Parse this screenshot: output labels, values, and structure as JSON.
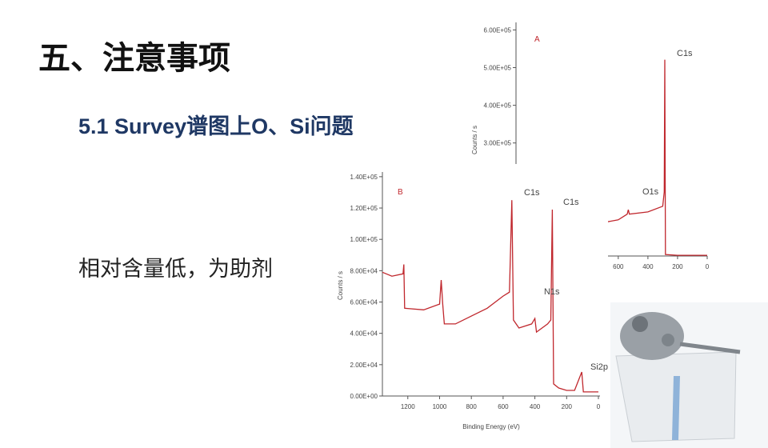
{
  "title": "五、注意事项",
  "subtitle": "5.1 Survey谱图上O、Si问题",
  "note": "相对含量低，为助剂",
  "chart_data": [
    {
      "type": "line",
      "panel": "A",
      "ylabel": "Counts / s",
      "color": "#c0272d",
      "annotations": [
        "C1s",
        "O1s"
      ],
      "x": [
        700,
        600,
        540,
        532,
        525,
        400,
        300,
        290,
        286,
        282,
        200,
        0
      ],
      "values": [
        89000,
        96000,
        111000,
        123000,
        111000,
        117000,
        132000,
        170000,
        521000,
        4000,
        2000,
        2000
      ],
      "xlim": [
        1290,
        0
      ],
      "xticks": [
        600,
        400,
        200,
        0
      ],
      "ylim": [
        0,
        620000
      ],
      "yticks": [
        {
          "value": 300000,
          "label": "3.00E+05"
        },
        {
          "value": 400000,
          "label": "4.00E+05"
        },
        {
          "value": 500000,
          "label": "5.00E+05"
        },
        {
          "value": 600000,
          "label": "6.00E+05"
        }
      ]
    },
    {
      "type": "line",
      "panel": "B",
      "xlabel": "Binding Energy (eV)",
      "ylabel": "Counts / s",
      "color": "#c0272d",
      "annotations": [
        "C1s",
        "C1s",
        "N1s",
        "Si2p"
      ],
      "x": [
        1360,
        1300,
        1230,
        1225,
        1220,
        1100,
        1000,
        990,
        980,
        970,
        900,
        800,
        700,
        600,
        560,
        545,
        535,
        500,
        420,
        400,
        390,
        320,
        300,
        290,
        282,
        250,
        200,
        150,
        105,
        95,
        50,
        0
      ],
      "values": [
        79000,
        76500,
        78000,
        84000,
        56000,
        55000,
        58700,
        74000,
        58700,
        46000,
        46000,
        51000,
        56000,
        63800,
        66300,
        125000,
        48500,
        43400,
        46000,
        49500,
        40800,
        46000,
        48500,
        119000,
        7700,
        5100,
        3600,
        3600,
        15300,
        2600,
        2600,
        2600
      ],
      "xlim": [
        1360,
        -10
      ],
      "xticks": [
        1200,
        1000,
        800,
        600,
        400,
        200,
        0
      ],
      "ylim": [
        0,
        143000
      ],
      "yticks": [
        {
          "value": 0,
          "label": "0.00E+00"
        },
        {
          "value": 20000,
          "label": "2.00E+04"
        },
        {
          "value": 40000,
          "label": "4.00E+04"
        },
        {
          "value": 60000,
          "label": "6.00E+04"
        },
        {
          "value": 80000,
          "label": "8.00E+04"
        },
        {
          "value": 100000,
          "label": "1.00E+05"
        },
        {
          "value": 120000,
          "label": "1.20E+05"
        },
        {
          "value": 140000,
          "label": "1.40E+05"
        }
      ]
    }
  ]
}
